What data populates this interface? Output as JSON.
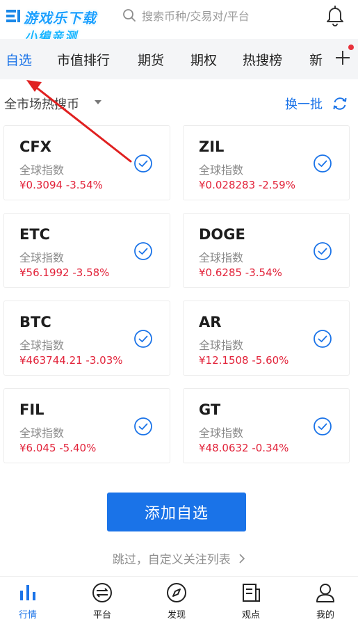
{
  "header": {
    "logo_main": "游戏乐下载",
    "logo_sub": "小编亲测",
    "search_placeholder": "搜索币种/交易对/平台"
  },
  "tabs": [
    {
      "label": "自选",
      "active": true
    },
    {
      "label": "市值排行"
    },
    {
      "label": "期货"
    },
    {
      "label": "期权"
    },
    {
      "label": "热搜榜"
    },
    {
      "label": "新"
    }
  ],
  "subheader": {
    "market_label": "全市场热搜币",
    "refresh_label": "换一批"
  },
  "cards": [
    {
      "symbol": "CFX",
      "index_label": "全球指数",
      "price": "¥0.3094 -3.54%"
    },
    {
      "symbol": "ZIL",
      "index_label": "全球指数",
      "price": "¥0.028283 -2.59%"
    },
    {
      "symbol": "ETC",
      "index_label": "全球指数",
      "price": "¥56.1992 -3.58%"
    },
    {
      "symbol": "DOGE",
      "index_label": "全球指数",
      "price": "¥0.6285 -3.54%"
    },
    {
      "symbol": "BTC",
      "index_label": "全球指数",
      "price": "¥463744.21 -3.03%"
    },
    {
      "symbol": "AR",
      "index_label": "全球指数",
      "price": "¥12.1508 -5.60%"
    },
    {
      "symbol": "FIL",
      "index_label": "全球指数",
      "price": "¥6.045 -5.40%"
    },
    {
      "symbol": "GT",
      "index_label": "全球指数",
      "price": "¥48.0632 -0.34%"
    }
  ],
  "cta": {
    "add_label": "添加自选",
    "skip_label": "跳过，自定义关注列表"
  },
  "bottom_nav": [
    {
      "label": "行情",
      "icon": "market-chart-icon",
      "active": true
    },
    {
      "label": "平台",
      "icon": "platform-icon"
    },
    {
      "label": "发现",
      "icon": "compass-icon"
    },
    {
      "label": "观点",
      "icon": "article-icon"
    },
    {
      "label": "我的",
      "icon": "profile-icon"
    }
  ],
  "colors": {
    "accent": "#1a73e8",
    "price_down": "#e2233a",
    "tab_bg": "#f4f5f7",
    "annotation_arrow": "#e02020"
  }
}
